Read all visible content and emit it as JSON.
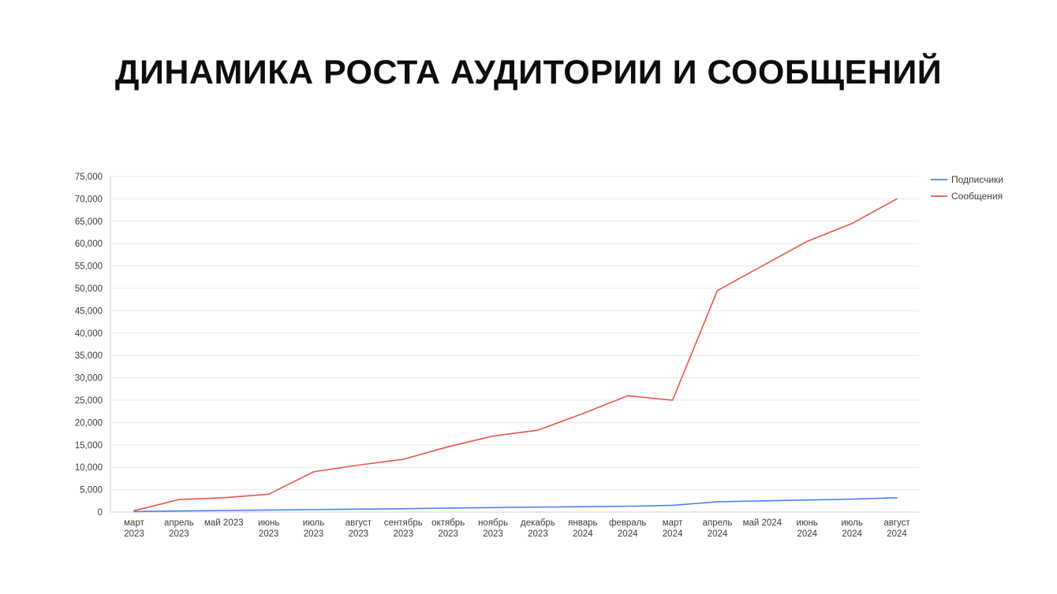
{
  "title": "ДИНАМИКА РОСТА АУДИТОРИИ И СООБЩЕНИЙ",
  "chart_data": {
    "type": "line",
    "title": "ДИНАМИКА РОСТА АУДИТОРИИ И СООБЩЕНИЙ",
    "xlabel": "",
    "ylabel": "",
    "ylim": [
      0,
      75000
    ],
    "ytick_step": 5000,
    "grid": true,
    "legend_position": "top-right",
    "categories": [
      "март 2023",
      "апрель 2023",
      "май 2023",
      "июнь 2023",
      "июль 2023",
      "август 2023",
      "сентябрь 2023",
      "октябрь 2023",
      "ноябрь 2023",
      "декабрь 2023",
      "январь 2024",
      "февраль 2024",
      "март 2024",
      "апрель 2024",
      "май 2024",
      "июнь 2024",
      "июль 2024",
      "август 2024"
    ],
    "x_tick_lines": [
      [
        "март",
        "2023"
      ],
      [
        "апрель",
        "2023"
      ],
      [
        "май 2023"
      ],
      [
        "июнь",
        "2023"
      ],
      [
        "июль",
        "2023"
      ],
      [
        "август",
        "2023"
      ],
      [
        "сентябрь",
        "2023"
      ],
      [
        "октябрь",
        "2023"
      ],
      [
        "ноябрь",
        "2023"
      ],
      [
        "декабрь",
        "2023"
      ],
      [
        "январь",
        "2024"
      ],
      [
        "февраль",
        "2024"
      ],
      [
        "март",
        "2024"
      ],
      [
        "апрель",
        "2024"
      ],
      [
        "май 2024"
      ],
      [
        "июнь",
        "2024"
      ],
      [
        "июль",
        "2024"
      ],
      [
        "август",
        "2024"
      ]
    ],
    "series": [
      {
        "id": "subscribers",
        "name": "Подписчики",
        "color": "#4584f4",
        "values": [
          100,
          250,
          350,
          450,
          550,
          650,
          750,
          900,
          1000,
          1100,
          1200,
          1300,
          1500,
          2300,
          2500,
          2700,
          2900,
          3200
        ]
      },
      {
        "id": "messages",
        "name": "Сообщения",
        "color": "#e2574c",
        "values": [
          300,
          2800,
          3200,
          4000,
          9000,
          10500,
          11800,
          14600,
          17000,
          18300,
          22000,
          26000,
          25000,
          49500,
          55000,
          60500,
          64500,
          70000
        ]
      }
    ],
    "colors": {
      "grid": "#e8e8e8",
      "axis": "#d2d2d2",
      "tick_text": "#3c3c3c",
      "background": "#ffffff"
    }
  }
}
